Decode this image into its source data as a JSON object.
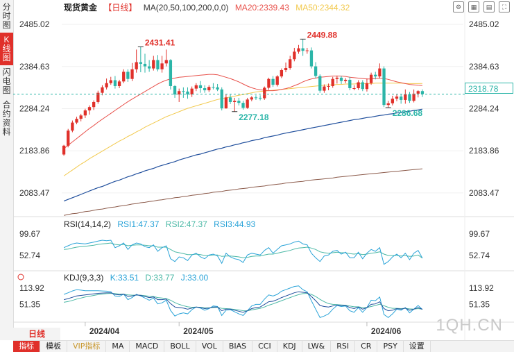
{
  "left_tabs": [
    "分时图",
    "K线图",
    "闪电图",
    "合约资料"
  ],
  "header": {
    "name": "现货黄金",
    "period": "【日线】",
    "ma_params": "MA(20,50,100,200,0,0)",
    "ma20": "MA20:2339.43",
    "ma50": "MA50:2344.32"
  },
  "price_tag": "2318.78",
  "rsi_header": {
    "name": "RSI(14,14,2)",
    "rsi1": "RSI1:47.37",
    "rsi2": "RSI2:47.37",
    "rsi3": "RSI3:44.93"
  },
  "kdj_header": {
    "name": "KDJ(9,3,3)",
    "k": "K:33.51",
    "d": "D:33.77",
    "j": "J:33.00"
  },
  "period_label": "日线",
  "bottom_tabs": [
    "指标",
    "模板",
    "VIP指标",
    "MA",
    "MACD",
    "BOLL",
    "VOL",
    "BIAS",
    "CCI",
    "KDJ",
    "LW&",
    "RSI",
    "CR",
    "PSY",
    "设置"
  ],
  "watermark": "1QH.CN",
  "colors": {
    "up": "#e0302a",
    "down": "#2bb5a8",
    "ma20": "#e8504a",
    "ma50": "#f2c94c",
    "ma100": "#1f4e9c",
    "ma200": "#8b5a4a",
    "rsi1": "#29a3d8",
    "rsi2": "#4ab8a5"
  },
  "chart_data": {
    "type": "candlestick",
    "main": {
      "y_ticks": [
        2485.02,
        2384.63,
        2284.24,
        2183.86,
        2083.47
      ],
      "ylim": [
        2027,
        2510
      ],
      "x_ticks": [
        "2024/04",
        "2024/05",
        "2024/06"
      ],
      "annotations": [
        {
          "text": "2431.41",
          "value": 2431.41,
          "candle": 18,
          "kind": "high"
        },
        {
          "text": "2449.88",
          "value": 2449.88,
          "candle": 56,
          "kind": "high"
        },
        {
          "text": "2277.18",
          "value": 2277.18,
          "candle": 40,
          "kind": "low"
        },
        {
          "text": "2286.68",
          "value": 2286.68,
          "candle": 76,
          "kind": "low"
        }
      ],
      "current_price": 2318.78,
      "candles": [
        [
          2175,
          2196,
          2172,
          2198
        ],
        [
          2196,
          2232,
          2192,
          2236
        ],
        [
          2232,
          2251,
          2228,
          2256
        ],
        [
          2251,
          2260,
          2247,
          2265
        ],
        [
          2260,
          2268,
          2254,
          2272
        ],
        [
          2268,
          2280,
          2262,
          2284
        ],
        [
          2280,
          2288,
          2270,
          2292
        ],
        [
          2288,
          2300,
          2281,
          2304
        ],
        [
          2300,
          2322,
          2296,
          2327
        ],
        [
          2322,
          2335,
          2316,
          2340
        ],
        [
          2335,
          2345,
          2330,
          2356
        ],
        [
          2345,
          2352,
          2341,
          2360
        ],
        [
          2352,
          2338,
          2332,
          2362
        ],
        [
          2338,
          2349,
          2333,
          2353
        ],
        [
          2349,
          2372,
          2345,
          2378
        ],
        [
          2372,
          2355,
          2348,
          2378
        ],
        [
          2355,
          2378,
          2350,
          2393
        ],
        [
          2378,
          2395,
          2370,
          2425
        ],
        [
          2395,
          2391,
          2371,
          2431.41
        ],
        [
          2391,
          2385,
          2370,
          2415
        ],
        [
          2385,
          2380,
          2372,
          2400
        ],
        [
          2380,
          2400,
          2375,
          2410
        ],
        [
          2400,
          2378,
          2373,
          2412
        ],
        [
          2378,
          2392,
          2370,
          2410
        ],
        [
          2392,
          2400,
          2385,
          2425
        ],
        [
          2400,
          2338,
          2330,
          2402
        ],
        [
          2338,
          2318,
          2310,
          2340
        ],
        [
          2318,
          2326,
          2300,
          2332
        ],
        [
          2326,
          2325,
          2310,
          2335
        ],
        [
          2325,
          2318,
          2308,
          2335
        ],
        [
          2318,
          2332,
          2312,
          2337
        ],
        [
          2332,
          2340,
          2326,
          2345
        ],
        [
          2340,
          2333,
          2322,
          2350
        ],
        [
          2333,
          2328,
          2322,
          2340
        ],
        [
          2328,
          2336,
          2324,
          2340
        ],
        [
          2336,
          2335,
          2330,
          2345
        ],
        [
          2335,
          2330,
          2326,
          2343
        ],
        [
          2330,
          2285,
          2280,
          2335
        ],
        [
          2285,
          2311,
          2284,
          2318
        ],
        [
          2311,
          2300,
          2295,
          2318
        ],
        [
          2300,
          2303,
          2277.18,
          2310
        ],
        [
          2303,
          2298,
          2292,
          2310
        ],
        [
          2298,
          2286,
          2282,
          2303
        ],
        [
          2286,
          2306,
          2284,
          2310
        ],
        [
          2306,
          2311,
          2302,
          2314
        ],
        [
          2311,
          2310,
          2305,
          2316
        ],
        [
          2310,
          2309,
          2304,
          2316
        ],
        [
          2309,
          2334,
          2305,
          2337
        ],
        [
          2334,
          2355,
          2329,
          2358
        ],
        [
          2355,
          2341,
          2336,
          2362
        ],
        [
          2341,
          2361,
          2337,
          2364
        ],
        [
          2361,
          2376,
          2357,
          2380
        ],
        [
          2376,
          2381,
          2371,
          2394
        ],
        [
          2381,
          2402,
          2377,
          2410
        ],
        [
          2402,
          2420,
          2397,
          2429
        ],
        [
          2420,
          2428,
          2415,
          2436
        ],
        [
          2428,
          2422,
          2410,
          2449.88
        ],
        [
          2422,
          2423,
          2415,
          2429
        ],
        [
          2423,
          2385,
          2380,
          2430
        ],
        [
          2385,
          2362,
          2357,
          2395
        ],
        [
          2362,
          2327,
          2322,
          2366
        ],
        [
          2327,
          2337,
          2322,
          2342
        ],
        [
          2337,
          2338,
          2328,
          2344
        ],
        [
          2338,
          2355,
          2334,
          2360
        ],
        [
          2355,
          2358,
          2344,
          2363
        ],
        [
          2358,
          2350,
          2343,
          2362
        ],
        [
          2350,
          2353,
          2345,
          2357
        ],
        [
          2353,
          2333,
          2328,
          2360
        ],
        [
          2333,
          2333,
          2328,
          2340
        ],
        [
          2333,
          2347,
          2329,
          2352
        ],
        [
          2347,
          2331,
          2326,
          2352
        ],
        [
          2331,
          2345,
          2325,
          2356
        ],
        [
          2345,
          2365,
          2341,
          2370
        ],
        [
          2365,
          2361,
          2354,
          2372
        ],
        [
          2361,
          2380,
          2356,
          2392
        ],
        [
          2380,
          2293,
          2288,
          2385
        ],
        [
          2293,
          2297,
          2286.68,
          2303
        ],
        [
          2297,
          2308,
          2292,
          2315
        ],
        [
          2308,
          2313,
          2302,
          2318
        ],
        [
          2313,
          2305,
          2296,
          2318
        ],
        [
          2305,
          2318,
          2296,
          2330
        ],
        [
          2318,
          2303,
          2298,
          2324
        ],
        [
          2303,
          2320,
          2299,
          2330
        ],
        [
          2320,
          2326,
          2311,
          2328
        ],
        [
          2326,
          2318.78,
          2312,
          2330
        ]
      ],
      "ma20": [
        2189,
        2197,
        2205,
        2213,
        2221,
        2229,
        2237,
        2244,
        2252,
        2259,
        2266,
        2273,
        2280,
        2287,
        2294,
        2301,
        2307,
        2313,
        2319,
        2325,
        2331,
        2337,
        2343,
        2348,
        2352,
        2355,
        2357,
        2359,
        2360,
        2361,
        2362,
        2363,
        2364,
        2365,
        2366,
        2366,
        2365,
        2362,
        2359,
        2356,
        2352,
        2348,
        2343,
        2338,
        2334,
        2331,
        2329,
        2328,
        2327,
        2327,
        2328,
        2330,
        2332,
        2335,
        2339,
        2343,
        2348,
        2352,
        2355,
        2357,
        2359,
        2360,
        2361,
        2362,
        2362,
        2362,
        2361,
        2359,
        2358,
        2357,
        2356,
        2355,
        2355,
        2356,
        2357,
        2356,
        2354,
        2351,
        2348,
        2346,
        2344,
        2342,
        2341,
        2340,
        2339.43
      ],
      "ma50": [
        2124,
        2131,
        2138,
        2145,
        2152,
        2158,
        2165,
        2171,
        2177,
        2183,
        2189,
        2195,
        2201,
        2207,
        2212,
        2218,
        2223,
        2229,
        2234,
        2240,
        2245,
        2250,
        2255,
        2260,
        2265,
        2269,
        2273,
        2277,
        2281,
        2285,
        2288,
        2291,
        2294,
        2297,
        2300,
        2303,
        2306,
        2308,
        2310,
        2312,
        2314,
        2316,
        2318,
        2320,
        2322,
        2324,
        2325,
        2326,
        2327,
        2328,
        2329,
        2330,
        2331,
        2332,
        2333,
        2334,
        2335,
        2336,
        2337,
        2338,
        2339,
        2340,
        2341,
        2341,
        2342,
        2342,
        2343,
        2343,
        2343,
        2344,
        2344,
        2344,
        2344,
        2345,
        2345,
        2345,
        2345,
        2345,
        2345,
        2345,
        2344,
        2344,
        2344,
        2344,
        2344.32
      ],
      "ma100": [
        2064,
        2068,
        2072,
        2076,
        2080,
        2084,
        2088,
        2092,
        2096,
        2099,
        2103,
        2107,
        2111,
        2114,
        2118,
        2122,
        2125,
        2129,
        2132,
        2136,
        2139,
        2142,
        2146,
        2149,
        2152,
        2155,
        2158,
        2162,
        2165,
        2168,
        2171,
        2174,
        2176,
        2179,
        2182,
        2185,
        2188,
        2190,
        2193,
        2195,
        2198,
        2200,
        2203,
        2205,
        2208,
        2210,
        2212,
        2215,
        2217,
        2219,
        2221,
        2224,
        2226,
        2228,
        2230,
        2232,
        2234,
        2236,
        2238,
        2240,
        2242,
        2244,
        2246,
        2248,
        2250,
        2252,
        2254,
        2256,
        2258,
        2259,
        2261,
        2263,
        2264,
        2266,
        2268,
        2269,
        2271,
        2272,
        2274,
        2275,
        2277,
        2278,
        2280,
        2281,
        2283
      ],
      "ma200": [
        2030,
        2032,
        2034,
        2035,
        2037,
        2039,
        2040,
        2042,
        2044,
        2045,
        2047,
        2049,
        2050,
        2052,
        2053,
        2055,
        2057,
        2058,
        2060,
        2061,
        2063,
        2064,
        2066,
        2067,
        2069,
        2070,
        2072,
        2073,
        2075,
        2076,
        2078,
        2079,
        2080,
        2082,
        2083,
        2085,
        2086,
        2087,
        2089,
        2090,
        2091,
        2093,
        2094,
        2095,
        2097,
        2098,
        2099,
        2100,
        2102,
        2103,
        2104,
        2105,
        2107,
        2108,
        2109,
        2110,
        2111,
        2113,
        2114,
        2115,
        2116,
        2117,
        2118,
        2119,
        2121,
        2122,
        2123,
        2124,
        2125,
        2126,
        2127,
        2128,
        2129,
        2130,
        2131,
        2132,
        2133,
        2134,
        2135,
        2136,
        2137,
        2138,
        2139,
        2140,
        2141
      ]
    },
    "rsi": {
      "y_ticks": [
        99.67,
        52.74
      ],
      "ylim": [
        20,
        110
      ],
      "rsi1": [
        70,
        74,
        78,
        80,
        79,
        78,
        80,
        82,
        84,
        86,
        85,
        86,
        70,
        74,
        80,
        66,
        76,
        80,
        78,
        72,
        70,
        76,
        62,
        70,
        74,
        46,
        40,
        50,
        48,
        42,
        54,
        58,
        50,
        46,
        54,
        56,
        52,
        36,
        58,
        50,
        46,
        44,
        38,
        54,
        58,
        56,
        54,
        64,
        70,
        58,
        66,
        74,
        76,
        78,
        82,
        84,
        78,
        76,
        58,
        48,
        40,
        52,
        54,
        62,
        64,
        56,
        60,
        48,
        48,
        60,
        46,
        58,
        66,
        62,
        70,
        34,
        40,
        50,
        56,
        48,
        58,
        44,
        58,
        64,
        47.37
      ],
      "rsi2": [
        66,
        67,
        69,
        71,
        72,
        73,
        74,
        75,
        77,
        78,
        79,
        80,
        77,
        76,
        77,
        74,
        75,
        76,
        76,
        75,
        74,
        74,
        71,
        71,
        71,
        66,
        61,
        59,
        57,
        55,
        55,
        56,
        55,
        53,
        53,
        54,
        54,
        51,
        52,
        52,
        51,
        50,
        48,
        49,
        51,
        52,
        52,
        54,
        56,
        56,
        58,
        60,
        62,
        64,
        67,
        69,
        70,
        71,
        69,
        66,
        61,
        59,
        58,
        59,
        60,
        59,
        59,
        57,
        56,
        57,
        55,
        56,
        58,
        59,
        61,
        56,
        53,
        53,
        53,
        52,
        53,
        51,
        52,
        54,
        47.37
      ]
    },
    "kdj": {
      "y_ticks": [
        113.92,
        51.35
      ],
      "ylim": [
        -10,
        140
      ],
      "k": [
        70,
        74,
        79,
        84,
        86,
        88,
        90,
        92,
        94,
        95,
        96,
        96,
        90,
        88,
        91,
        82,
        84,
        88,
        86,
        82,
        78,
        80,
        70,
        70,
        72,
        55,
        42,
        40,
        38,
        34,
        38,
        42,
        40,
        36,
        38,
        42,
        42,
        28,
        34,
        34,
        30,
        26,
        22,
        28,
        36,
        40,
        42,
        52,
        62,
        64,
        70,
        78,
        84,
        90,
        96,
        100,
        98,
        96,
        82,
        66,
        48,
        44,
        42,
        46,
        50,
        48,
        48,
        40,
        36,
        42,
        34,
        40,
        52,
        54,
        62,
        36,
        28,
        30,
        36,
        34,
        38,
        30,
        34,
        40,
        33.51
      ],
      "d": [
        60,
        63,
        67,
        72,
        76,
        80,
        83,
        86,
        89,
        91,
        93,
        94,
        93,
        91,
        91,
        88,
        87,
        87,
        87,
        85,
        83,
        82,
        78,
        76,
        74,
        68,
        59,
        52,
        47,
        43,
        41,
        42,
        41,
        39,
        39,
        40,
        41,
        37,
        36,
        35,
        33,
        31,
        28,
        28,
        31,
        34,
        37,
        42,
        49,
        54,
        60,
        66,
        72,
        78,
        84,
        89,
        93,
        94,
        90,
        82,
        71,
        62,
        55,
        52,
        51,
        50,
        49,
        46,
        43,
        43,
        40,
        40,
        44,
        48,
        53,
        47,
        41,
        37,
        37,
        36,
        37,
        35,
        34,
        36,
        33.77
      ],
      "j": [
        90,
        96,
        103,
        108,
        106,
        104,
        104,
        104,
        104,
        103,
        102,
        100,
        84,
        82,
        91,
        70,
        78,
        90,
        84,
        76,
        68,
        76,
        54,
        58,
        68,
        29,
        8,
        16,
        20,
        16,
        32,
        42,
        38,
        30,
        36,
        46,
        44,
        10,
        30,
        32,
        24,
        16,
        10,
        28,
        46,
        52,
        52,
        72,
        88,
        84,
        90,
        102,
        108,
        114,
        120,
        122,
        108,
        100,
        66,
        34,
        2,
        8,
        16,
        34,
        48,
        44,
        46,
        28,
        22,
        40,
        22,
        40,
        68,
        66,
        80,
        14,
        2,
        16,
        34,
        30,
        40,
        20,
        34,
        48,
        33.0
      ]
    }
  }
}
